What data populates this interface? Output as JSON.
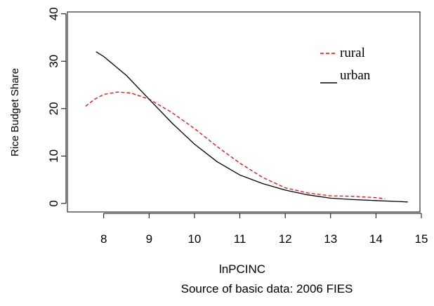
{
  "chart_data": {
    "type": "line",
    "x_label": "lnPCINC",
    "y_label": "Rice Budget Share",
    "caption": "Source of basic data: 2006 FIES",
    "series": [
      {
        "name": "rural",
        "color": "#ff0000",
        "dash": true,
        "x": [
          7.6,
          7.8,
          8.0,
          8.3,
          8.6,
          9.0,
          9.5,
          10.0,
          10.5,
          11.0,
          11.5,
          12.0,
          12.5,
          13.0,
          13.5,
          14.0,
          14.2
        ],
        "values": [
          20.5,
          22,
          23,
          23.5,
          23.3,
          22,
          19.2,
          15.8,
          12,
          8.5,
          5.5,
          3.3,
          2.2,
          1.6,
          1.5,
          1.2,
          1.0
        ]
      },
      {
        "name": "urban",
        "color": "#000000",
        "dash": false,
        "x": [
          7.83,
          8.0,
          8.5,
          9.0,
          9.5,
          10.0,
          10.5,
          11.0,
          11.5,
          12.0,
          12.5,
          13.0,
          13.5,
          14.0,
          14.5,
          14.7
        ],
        "values": [
          32,
          31,
          27,
          22,
          17,
          12.5,
          8.8,
          6,
          4.2,
          2.8,
          1.8,
          1.1,
          0.8,
          0.6,
          0.4,
          0.3
        ]
      }
    ],
    "xlim": [
      7.2,
      15.0
    ],
    "xticks": [
      8,
      9,
      10,
      11,
      12,
      13,
      14,
      15
    ],
    "ylim": [
      -1.8,
      40.4
    ],
    "yticks": [
      0,
      10,
      20,
      30,
      40
    ],
    "grid": false,
    "legend": "top right"
  }
}
